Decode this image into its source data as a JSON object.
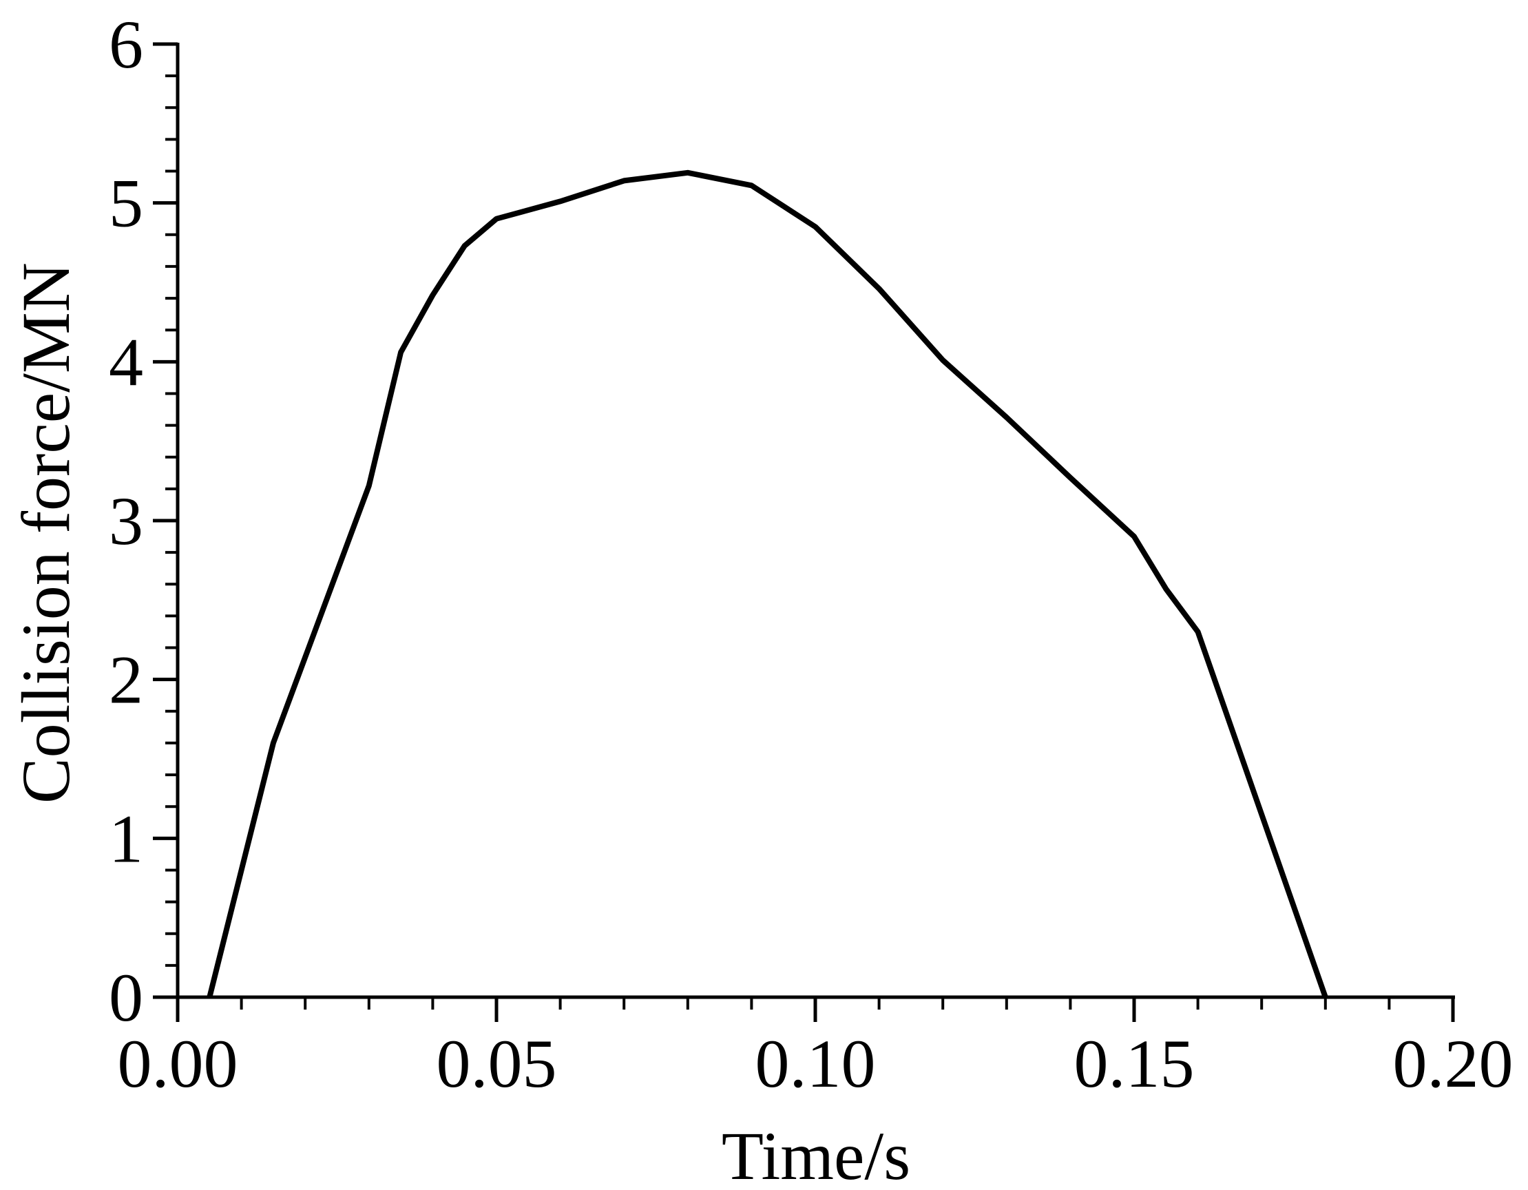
{
  "chart_data": {
    "type": "line",
    "title": "",
    "xlabel": "Time/s",
    "ylabel": "Collision force/MN",
    "xlim": [
      0,
      0.2
    ],
    "ylim": [
      0,
      6
    ],
    "x_ticks": [
      "0.00",
      "0.05",
      "0.10",
      "0.15",
      "0.20"
    ],
    "y_ticks": [
      "0",
      "1",
      "2",
      "3",
      "4",
      "5",
      "6"
    ],
    "x_tick_values": [
      0,
      0.05,
      0.1,
      0.15,
      0.2
    ],
    "y_tick_values": [
      0,
      1,
      2,
      3,
      4,
      5,
      6
    ],
    "x_minor_step": 0.01,
    "y_minor_step": 0.2,
    "grid": false,
    "legend": "none",
    "colors": {
      "line": "#000000",
      "axis": "#000000"
    },
    "series": [
      {
        "x": [
          0.005,
          0.015,
          0.03,
          0.035,
          0.04,
          0.045,
          0.05,
          0.06,
          0.07,
          0.08,
          0.09,
          0.1,
          0.11,
          0.12,
          0.13,
          0.14,
          0.15,
          0.155,
          0.16,
          0.17,
          0.18
        ],
        "y": [
          0.0,
          1.6,
          3.22,
          4.06,
          4.42,
          4.73,
          4.9,
          5.01,
          5.14,
          5.19,
          5.11,
          4.85,
          4.46,
          4.01,
          3.65,
          3.27,
          2.9,
          2.57,
          2.3,
          1.15,
          0.0
        ]
      }
    ]
  }
}
